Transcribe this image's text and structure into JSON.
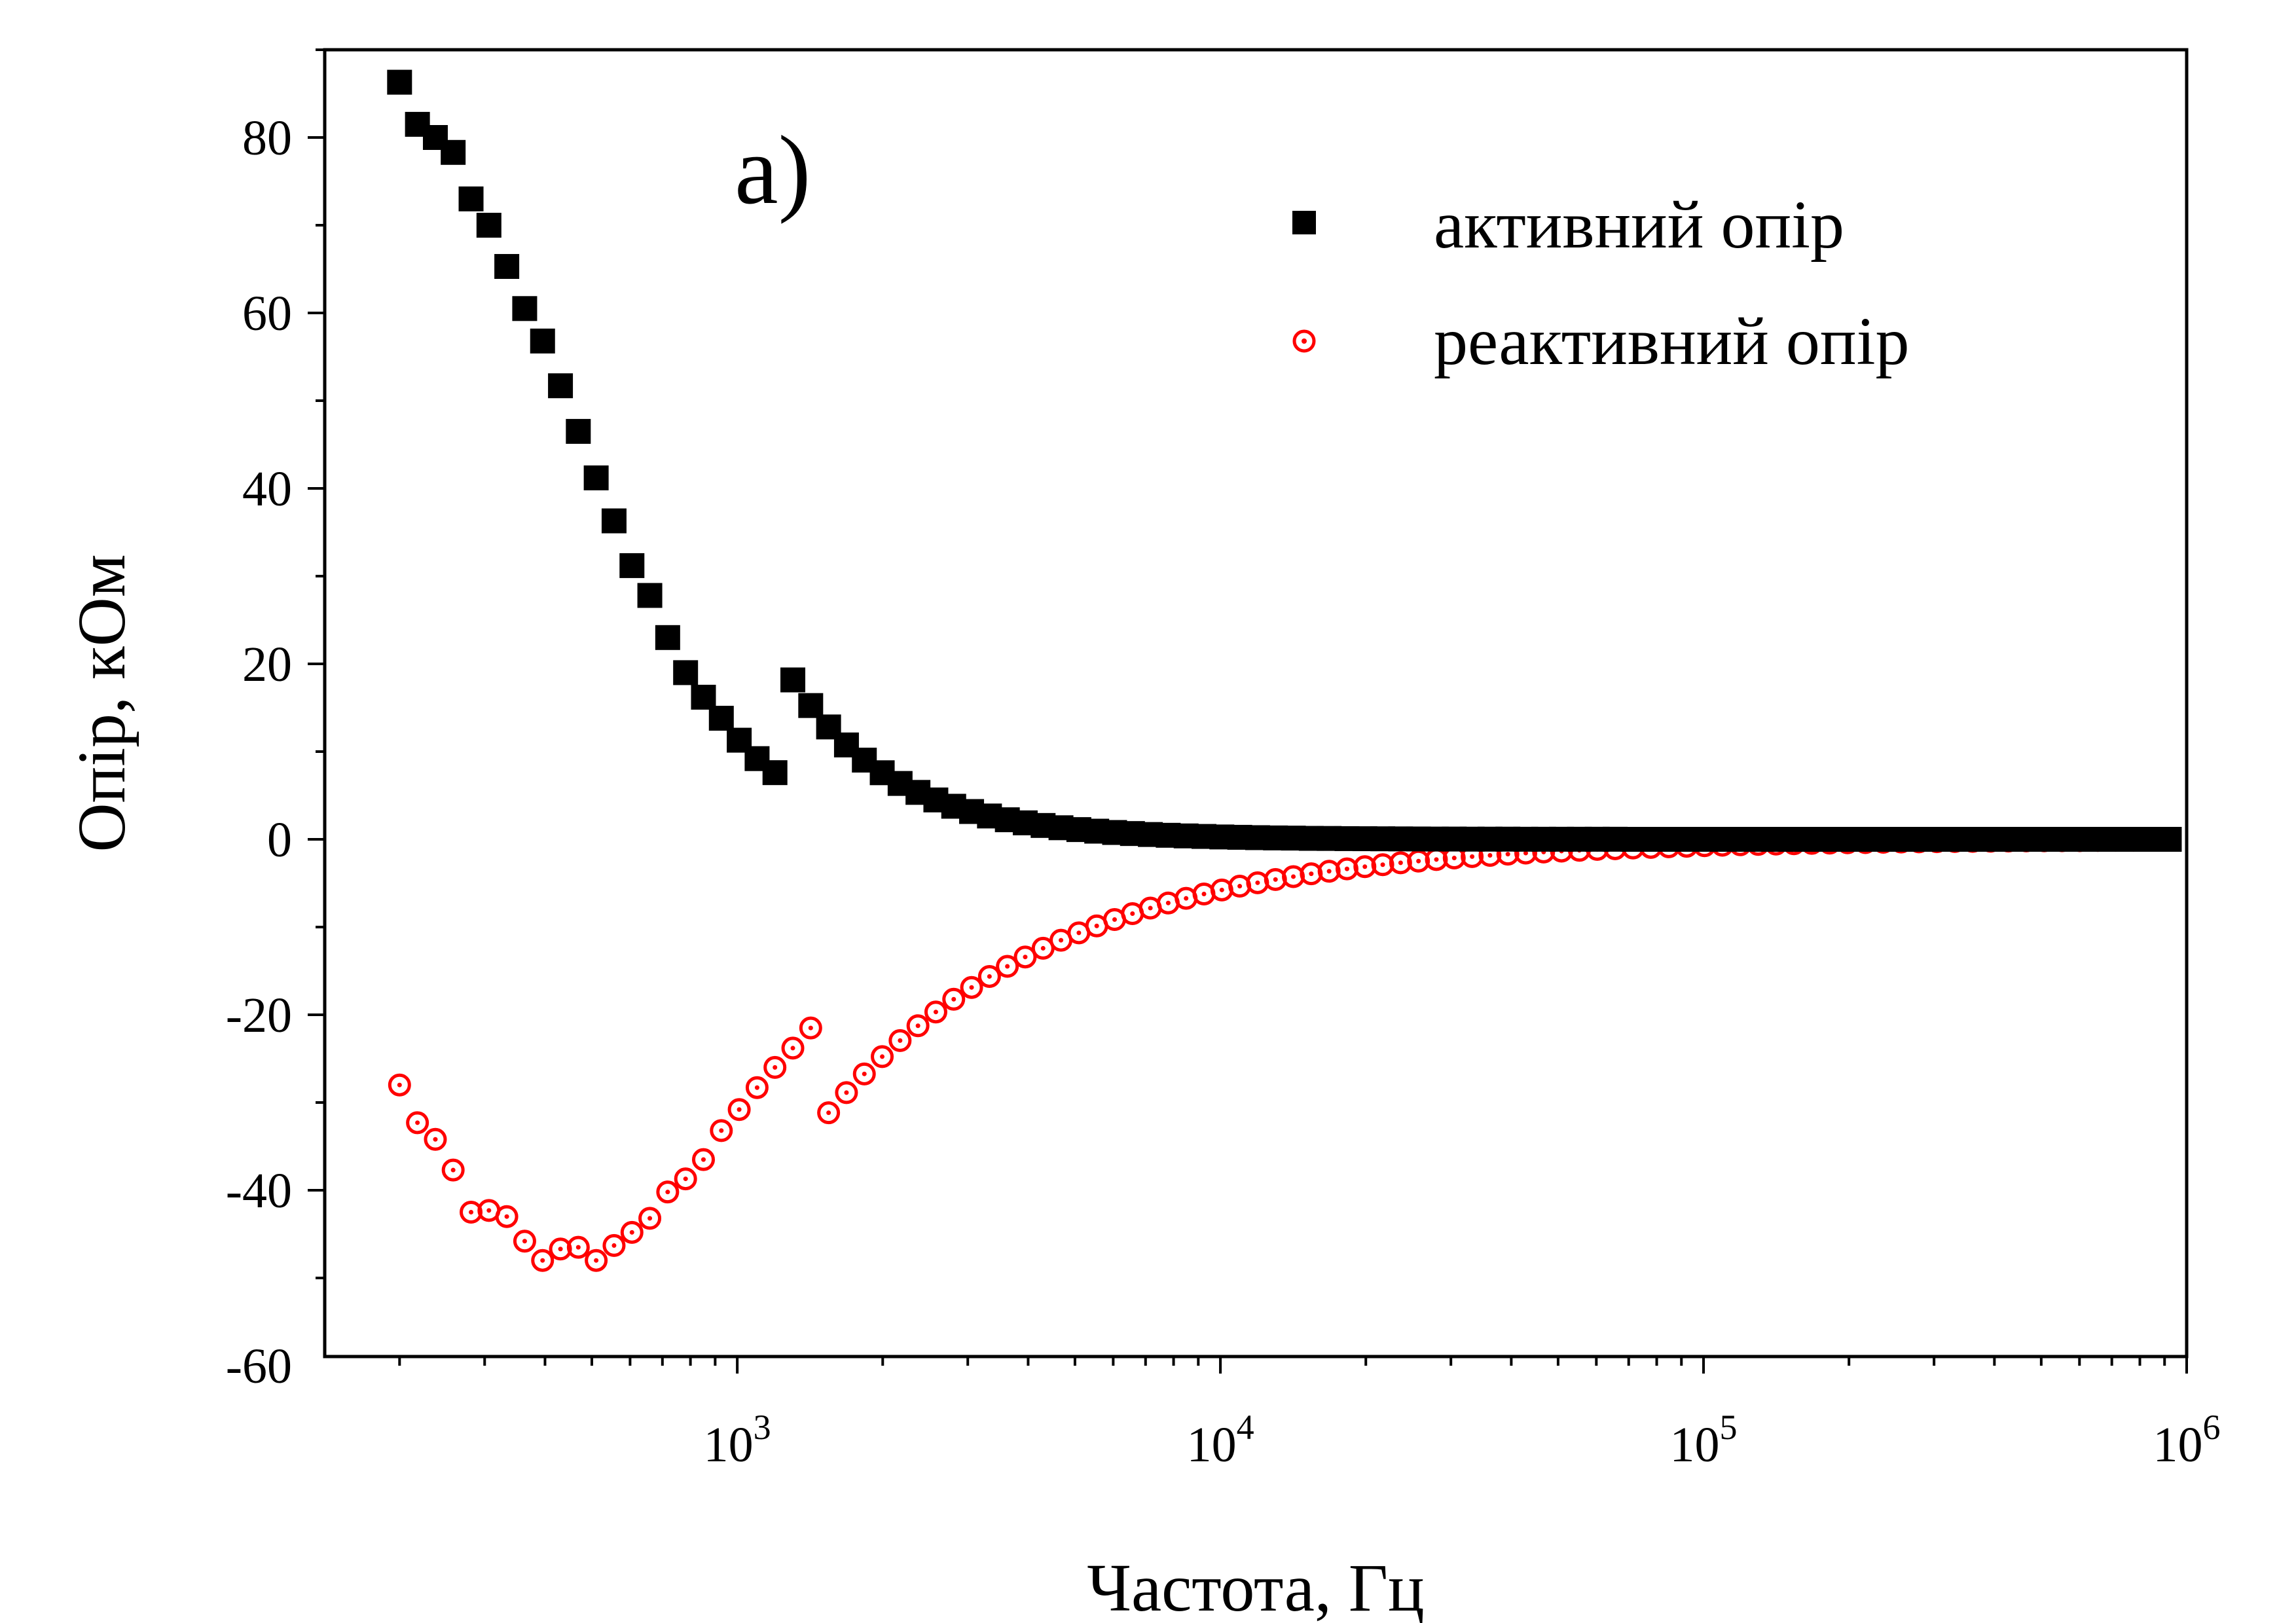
{
  "chart_data": {
    "type": "scatter",
    "panel_label": "a)",
    "xlabel": "Частота, Гц",
    "ylabel": "Опір, кОм",
    "xscale": "log",
    "xlim": [
      140,
      1000000
    ],
    "ylim": [
      -60,
      90
    ],
    "y_ticks": [
      "80",
      "60",
      "40",
      "20",
      "0",
      "-20",
      "-40",
      "-60"
    ],
    "y_tick_values": [
      80,
      60,
      40,
      20,
      0,
      -20,
      -40,
      -60
    ],
    "x_ticks": [
      {
        "base": "10",
        "exp": "3",
        "value": 1000
      },
      {
        "base": "10",
        "exp": "4",
        "value": 10000
      },
      {
        "base": "10",
        "exp": "5",
        "value": 100000
      },
      {
        "base": "10",
        "exp": "6",
        "value": 1000000
      }
    ],
    "legend_position": "top-right",
    "series": [
      {
        "name": "активний опір",
        "marker": "square",
        "color": "#000000",
        "x": [],
        "y": []
      },
      {
        "name": "реактивний опір",
        "marker": "circle-dot",
        "color": "#ff0000",
        "x": [],
        "y": []
      }
    ]
  }
}
